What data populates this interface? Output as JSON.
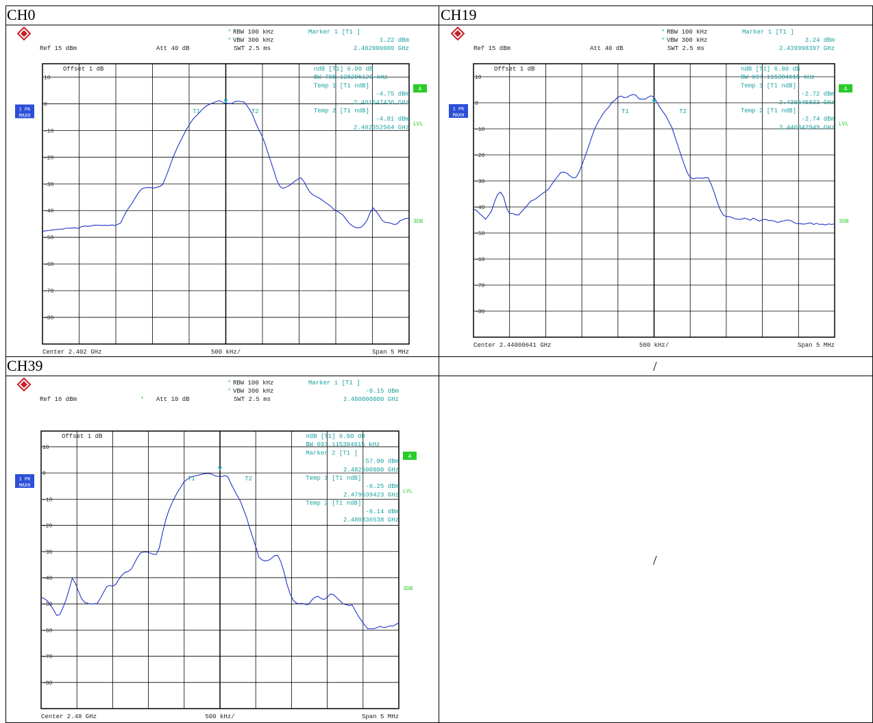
{
  "headers": {
    "ch0": "CH0",
    "ch19": "CH19",
    "ch39": "CH39",
    "empty": "/",
    "empty_body": "/"
  },
  "colors": {
    "trace": "#1e33c8",
    "teal": "#1aa0a0",
    "green": "#28cc28",
    "badge_blue": "#2b4fd8"
  },
  "labels": {
    "rbw": "RBW",
    "vbw": "VBW",
    "swt": "SWT",
    "ref": "Ref",
    "att": "Att",
    "offset": "Offset",
    "marker1": "Marker 1 [T1 ]",
    "marker2": "Marker 2 [T1 ]",
    "ndb": "ndB [T1]",
    "bw": "BW",
    "temp1": "Temp 1 [T1 ndB]",
    "temp2": "Temp 2 [T1 ndB]",
    "badge_a": "A",
    "lvl": "LVL",
    "three_db": "3DB",
    "pk": "1 PK",
    "maxh": "MAXH",
    "center": "Center",
    "span": "Span",
    "per_div": "500 kHz/"
  },
  "chart_data": [
    {
      "type": "line",
      "title": "CH0",
      "rbw": "100 kHz",
      "vbw": "300 kHz",
      "swt": "2.5 ms",
      "ref": "15 dBm",
      "att": "40 dB",
      "offset": "1 dB",
      "marker_lines": [
        "Marker 1 [T1 ]",
        "1.22 dBm",
        "2.402000000 GHz"
      ],
      "info_lines": [
        "ndB [T1]      6.00 dB",
        "BW 705.128205129 kHz",
        "Temp 1 [T1 ndB]",
        "-4.75 dBm",
        "2.401647436 GHz",
        "Temp 2 [T1 ndB]",
        "-4.81 dBm",
        "2.402352564 GHz"
      ],
      "y_ticks": [
        "10",
        "0",
        "-10",
        "-20",
        "-30",
        "-40",
        "-50",
        "-60",
        "-70",
        "-80"
      ],
      "center": "2.402 GHz",
      "span": "5 MHz",
      "per_div": "500 kHz/",
      "ylim": [
        -90,
        15
      ],
      "xlim": [
        -2.5,
        2.5
      ],
      "y_values": [
        -47.8,
        -47.6,
        -47.5,
        -47.3,
        -47.2,
        -47,
        -47,
        -46.9,
        -46.6,
        -46.6,
        -46.5,
        -46.5,
        -46.7,
        -46,
        -45.8,
        -45.9,
        -45.8,
        -45.5,
        -45.5,
        -45.5,
        -45.6,
        -45.5,
        -45.6,
        -45.4,
        -45.6,
        -45.2,
        -44.7,
        -42.3,
        -40.2,
        -38.5,
        -36.9,
        -35,
        -33.2,
        -31.9,
        -31.5,
        -31.4,
        -31.4,
        -31.6,
        -31.3,
        -31,
        -30.2,
        -27.6,
        -24.6,
        -21.4,
        -18.6,
        -16.1,
        -13.8,
        -11.6,
        -9.4,
        -7.6,
        -5.9,
        -4.7,
        -3.6,
        -2.3,
        -1.3,
        -0.5,
        0,
        0.4,
        0.9,
        1.2,
        0.5,
        0.2,
        0.1,
        0.1,
        0.8,
        1,
        0.8,
        0.7,
        -0.6,
        -2.3,
        -4.4,
        -7.3,
        -9.7,
        -11.9,
        -14.8,
        -18.3,
        -21.7,
        -25.1,
        -28.7,
        -30.9,
        -31.7,
        -31.3,
        -30.7,
        -29.9,
        -28.9,
        -28.3,
        -27.7,
        -29.1,
        -31.3,
        -33.1,
        -34.1,
        -34.7,
        -35.3,
        -36,
        -36.9,
        -37.6,
        -38.5,
        -39.6,
        -40.2,
        -40.9,
        -41.7,
        -43.2,
        -44.7,
        -45.6,
        -46.3,
        -46.5,
        -46.3,
        -45.2,
        -43.7,
        -40.8,
        -39,
        -40.3,
        -41.8,
        -43.6,
        -44.4,
        -44.5,
        -44.8,
        -45.2,
        -45,
        -43.8,
        -43.4,
        -42.9,
        -43
      ]
    },
    {
      "type": "line",
      "title": "CH19",
      "rbw": "100 kHz",
      "vbw": "300 kHz",
      "swt": "2.5 ms",
      "ref": "15 dBm",
      "att": "40 dB",
      "offset": "1 dB",
      "marker_lines": [
        "Marker 1 [T1 ]",
        "3.24 dBm",
        "2.439998397 GHz"
      ],
      "info_lines": [
        "ndB [T1]      6.00 dB",
        "BW 697.115384615 kHz",
        "Temp 1 [T1 ndB]",
        "-2.72 dBm",
        "2.439645833 GHz",
        "Temp 2 [T1 ndB]",
        "-2.74 dBm",
        "2.440342949 GHz"
      ],
      "y_ticks": [
        "10",
        "0",
        "-10",
        "-20",
        "-30",
        "-40",
        "-50",
        "-60",
        "-70",
        "-80"
      ],
      "center": "2.44000641 GHz",
      "span": "5 MHz",
      "per_div": "500 kHz/",
      "ylim": [
        -90,
        15
      ],
      "xlim": [
        -2.5,
        2.5
      ],
      "y_values": [
        -40.9,
        -41.3,
        -42.6,
        -43.5,
        -44.7,
        -43.2,
        -41.6,
        -38,
        -35.2,
        -34.3,
        -36.1,
        -40.4,
        -42.5,
        -42.5,
        -43,
        -43.1,
        -41.8,
        -40.5,
        -39.2,
        -37.8,
        -37.3,
        -36.6,
        -35.6,
        -34.8,
        -34,
        -33.1,
        -31.3,
        -29.7,
        -28.2,
        -26.8,
        -26.6,
        -27,
        -28,
        -28.8,
        -28.7,
        -26.8,
        -24,
        -20.8,
        -17.6,
        -14.1,
        -10.8,
        -8.2,
        -6.2,
        -4.3,
        -2.8,
        -1.6,
        0.2,
        1,
        2.2,
        2.6,
        2,
        2.1,
        2.8,
        3.2,
        2.9,
        1.5,
        1.4,
        1.4,
        2.1,
        2.7,
        2.1,
        0,
        -1.9,
        -3.5,
        -5.2,
        -7.5,
        -9.7,
        -13.2,
        -16.7,
        -20.3,
        -23.6,
        -26.7,
        -28.6,
        -29.2,
        -28.9,
        -28.9,
        -29,
        -28.8,
        -28.8,
        -31.3,
        -34.5,
        -38.1,
        -41.1,
        -43.1,
        -43.7,
        -43.7,
        -44.1,
        -44.6,
        -44.7,
        -44.7,
        -44.3,
        -44.6,
        -45.1,
        -44.3,
        -44.9,
        -45.4,
        -44.9,
        -44.7,
        -45.2,
        -45.2,
        -45.4,
        -46,
        -45.6,
        -45.4,
        -45,
        -45.1,
        -45.6,
        -46.3,
        -46.4,
        -46.5,
        -46.6,
        -46.3,
        -46.1,
        -46.7,
        -46.3,
        -46.7,
        -46.6,
        -46.9,
        -46.5,
        -46.7,
        -46.5
      ]
    },
    {
      "type": "line",
      "title": "CH39",
      "rbw": "100 kHz",
      "vbw": "300 kHz",
      "swt": "2.5 ms",
      "ref": "16 dBm",
      "att": "10 dB",
      "offset": "1 dB",
      "marker_lines": [
        "Marker 1 [T1 ]",
        "-0.15 dBm",
        "2.480000000 GHz"
      ],
      "info_lines": [
        "ndB [T1]      6.00 dB",
        "BW 697.115384615 kHz",
        "Marker 2 [T1 ]",
        "-57.00 dBm",
        "2.482500000 GHz",
        "Temp 1 [T1 ndB]",
        "-6.25 dBm",
        "2.479639423 GHz",
        "Temp 2 [T1 ndB]",
        "-6.14 dBm",
        "2.480336538 GHz"
      ],
      "y_ticks": [
        "10",
        "0",
        "-10",
        "-20",
        "-30",
        "-40",
        "-50",
        "-60",
        "-70",
        "-80"
      ],
      "center": "2.48 GHz",
      "span": "5 MHz",
      "per_div": "500 kHz/",
      "ylim": [
        -90,
        16
      ],
      "xlim": [
        -2.5,
        2.5
      ],
      "y_values": [
        -47.5,
        -48,
        -48.8,
        -50.4,
        -52.3,
        -54.4,
        -54.1,
        -51.5,
        -48.5,
        -44.5,
        -40.2,
        -42.1,
        -45.2,
        -48,
        -49.4,
        -49.8,
        -50.1,
        -49.9,
        -49.9,
        -48,
        -45.8,
        -43.5,
        -43,
        -43.2,
        -42.6,
        -40.6,
        -39,
        -38,
        -37.6,
        -36.7,
        -34.5,
        -32.2,
        -30.5,
        -30.2,
        -30.2,
        -30.6,
        -31,
        -31.2,
        -28.6,
        -23.1,
        -18.2,
        -14.5,
        -11.8,
        -9.2,
        -7,
        -5.2,
        -3.3,
        -2.4,
        -1.6,
        -1.3,
        -1,
        -0.7,
        -0.4,
        -0.2,
        -0.2,
        -0.5,
        -1.2,
        -1.3,
        -1.4,
        -1,
        -1.4,
        -4,
        -6.3,
        -8.6,
        -10.6,
        -13.7,
        -16.8,
        -20.8,
        -24.5,
        -28.1,
        -32.1,
        -33.2,
        -33.6,
        -33.4,
        -32.7,
        -31.6,
        -31.4,
        -33.7,
        -37.5,
        -42.3,
        -46,
        -48.5,
        -49.7,
        -49.9,
        -49.8,
        -50.2,
        -50.2,
        -48.6,
        -47.5,
        -47.1,
        -48,
        -48.3,
        -47.5,
        -46.2,
        -46.5,
        -47.6,
        -48.7,
        -49.9,
        -50.3,
        -50.6,
        -50.4,
        -52.6,
        -54.7,
        -56.4,
        -58.1,
        -59.5,
        -59.5,
        -59.5,
        -59.1,
        -58.6,
        -59,
        -58.9,
        -58.4,
        -58.5,
        -57.9,
        -57.2
      ]
    }
  ]
}
